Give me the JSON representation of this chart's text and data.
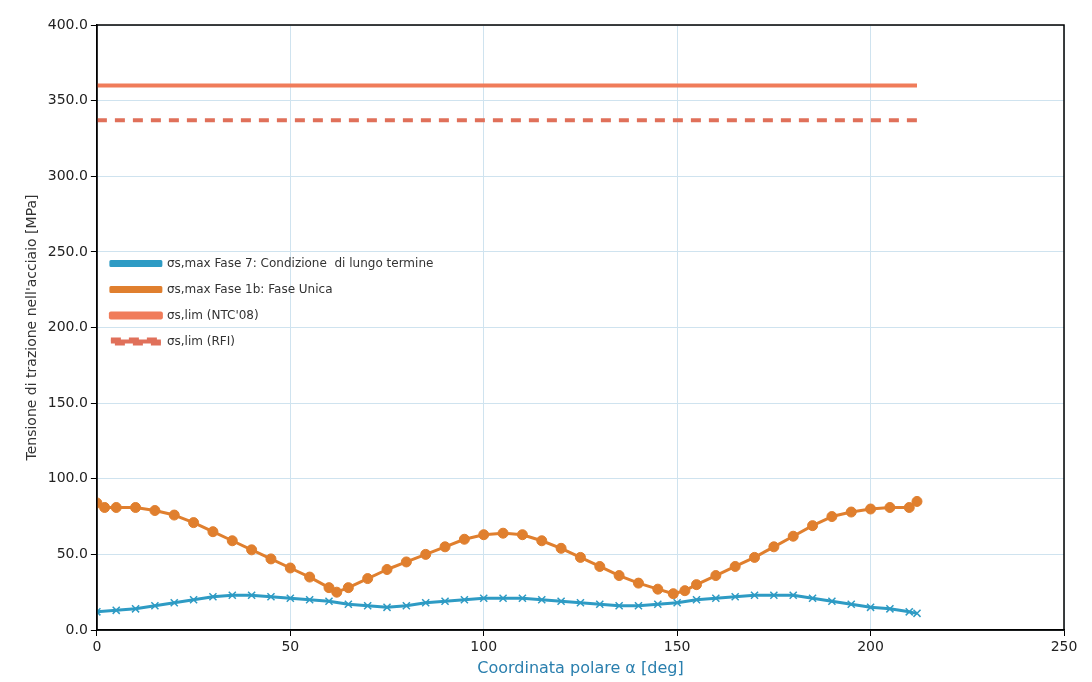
{
  "chart_data": {
    "type": "line",
    "xlabel": "Coordinata polare α [deg]",
    "ylabel": "Tensione di trazione nell'acciaio [MPa]",
    "xlim": [
      0,
      250
    ],
    "xticks": [
      0,
      50,
      100,
      150,
      200,
      250
    ],
    "ylim": [
      0,
      400
    ],
    "yticks": [
      {
        "value": 0,
        "label": "0.0"
      },
      {
        "value": 50,
        "label": "50.0"
      },
      {
        "value": 100,
        "label": "100.0"
      },
      {
        "value": 150,
        "label": "150.0"
      },
      {
        "value": 200,
        "label": "200.0"
      },
      {
        "value": 250,
        "label": "250.0"
      },
      {
        "value": 300,
        "label": "300.0"
      },
      {
        "value": 350,
        "label": "350.0"
      },
      {
        "value": 400,
        "label": "400.0"
      }
    ],
    "grid": true,
    "legend": "top",
    "series": [
      {
        "name": "σs,max Fase 7: Condizione  di lungo termine",
        "color": "#2e9bc4",
        "marker": "cross",
        "line_style": "solid",
        "x": [
          0,
          5,
          10,
          15,
          20,
          25,
          30,
          35,
          40,
          45,
          50,
          55,
          60,
          65,
          70,
          75,
          80,
          85,
          90,
          95,
          100,
          105,
          110,
          115,
          120,
          125,
          130,
          135,
          140,
          145,
          150,
          155,
          160,
          165,
          170,
          175,
          180,
          185,
          190,
          195,
          200,
          205,
          210,
          212
        ],
        "values": [
          12,
          13,
          14,
          16,
          18,
          20,
          22,
          23,
          23,
          22,
          21,
          20,
          19,
          17,
          16,
          15,
          16,
          18,
          19,
          20,
          21,
          21,
          21,
          20,
          19,
          18,
          17,
          16,
          16,
          17,
          18,
          20,
          21,
          22,
          23,
          23,
          23,
          21,
          19,
          17,
          15,
          14,
          12,
          11
        ]
      },
      {
        "name": "σs,max Fase 1b: Fase Unica",
        "color": "#e07f2e",
        "marker": "circle",
        "line_style": "solid",
        "x": [
          0,
          2,
          5,
          10,
          15,
          20,
          25,
          30,
          35,
          40,
          45,
          50,
          55,
          60,
          62,
          65,
          70,
          75,
          80,
          85,
          90,
          95,
          100,
          105,
          110,
          115,
          120,
          125,
          130,
          135,
          140,
          145,
          149,
          152,
          155,
          160,
          165,
          170,
          175,
          180,
          185,
          190,
          195,
          200,
          205,
          210,
          212
        ],
        "values": [
          84,
          81,
          81,
          81,
          79,
          76,
          71,
          65,
          59,
          53,
          47,
          41,
          35,
          28,
          25,
          28,
          34,
          40,
          45,
          50,
          55,
          60,
          63,
          64,
          63,
          59,
          54,
          48,
          42,
          36,
          31,
          27,
          24,
          26,
          30,
          36,
          42,
          48,
          55,
          62,
          69,
          75,
          78,
          80,
          81,
          81,
          85
        ]
      },
      {
        "name": "σs,lim (NTC'08)",
        "color": "#f07c5a",
        "marker": "none",
        "line_style": "solid",
        "x": [
          0,
          212
        ],
        "values": [
          360,
          360
        ]
      },
      {
        "name": "σs,lim (RFI)",
        "color": "#e0705a",
        "marker": "none",
        "line_style": "dashed",
        "x": [
          0,
          212
        ],
        "values": [
          337,
          337
        ]
      }
    ]
  }
}
